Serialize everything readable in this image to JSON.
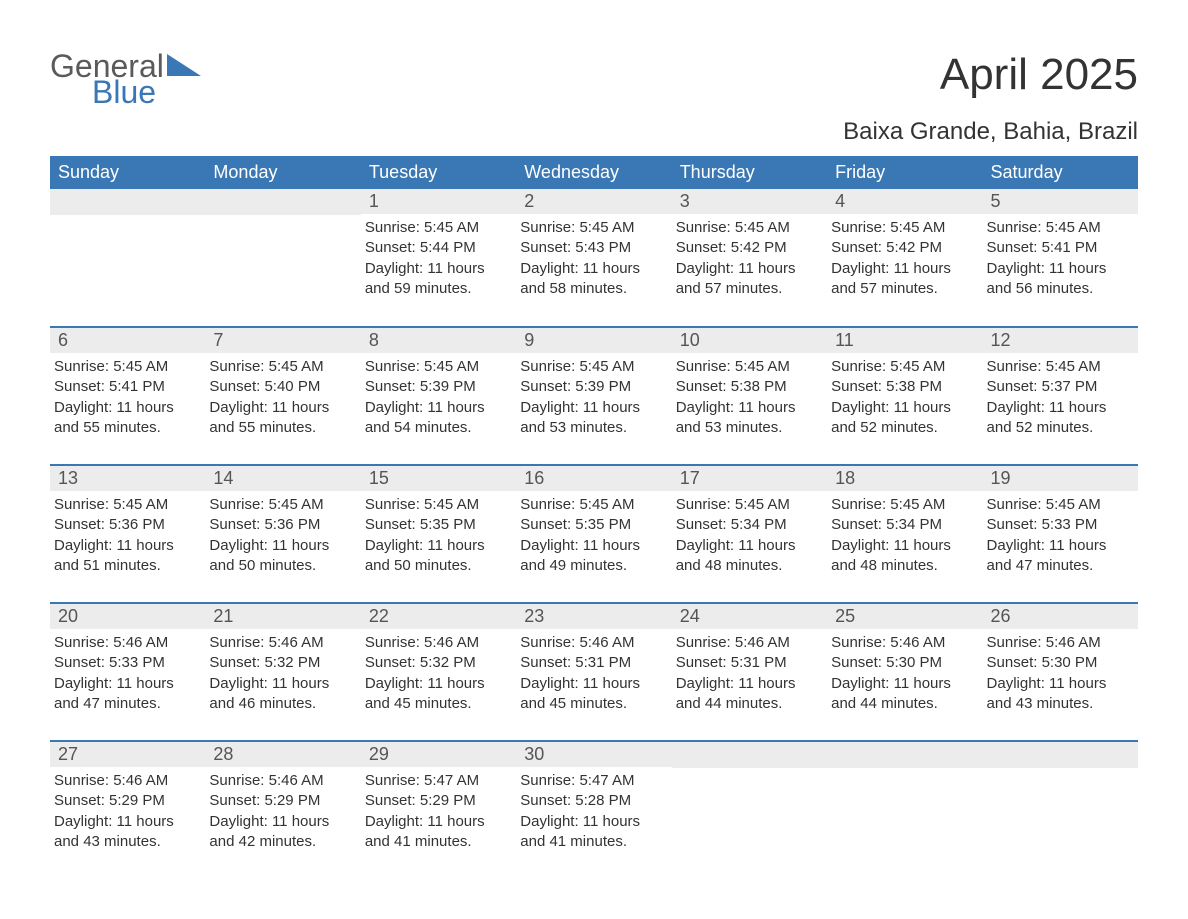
{
  "logo": {
    "line1": "General",
    "line2": "Blue",
    "color_text": "#5a5a5a",
    "color_blue": "#3a78b5"
  },
  "title": "April 2025",
  "subtitle": "Baixa Grande, Bahia, Brazil",
  "colors": {
    "header_bg": "#3a78b5",
    "header_text": "#ffffff",
    "daynum_bg": "#ececec",
    "daynum_text": "#555555",
    "body_text": "#333333",
    "row_divider": "#3a78b5",
    "background": "#ffffff"
  },
  "fontsizes": {
    "title": 44,
    "subtitle": 24,
    "weekday": 18,
    "daynum": 18,
    "body": 15
  },
  "weekdays": [
    "Sunday",
    "Monday",
    "Tuesday",
    "Wednesday",
    "Thursday",
    "Friday",
    "Saturday"
  ],
  "weeks": [
    [
      {
        "blank": true
      },
      {
        "blank": true
      },
      {
        "day": "1",
        "sunrise": "Sunrise: 5:45 AM",
        "sunset": "Sunset: 5:44 PM",
        "dl1": "Daylight: 11 hours",
        "dl2": "and 59 minutes."
      },
      {
        "day": "2",
        "sunrise": "Sunrise: 5:45 AM",
        "sunset": "Sunset: 5:43 PM",
        "dl1": "Daylight: 11 hours",
        "dl2": "and 58 minutes."
      },
      {
        "day": "3",
        "sunrise": "Sunrise: 5:45 AM",
        "sunset": "Sunset: 5:42 PM",
        "dl1": "Daylight: 11 hours",
        "dl2": "and 57 minutes."
      },
      {
        "day": "4",
        "sunrise": "Sunrise: 5:45 AM",
        "sunset": "Sunset: 5:42 PM",
        "dl1": "Daylight: 11 hours",
        "dl2": "and 57 minutes."
      },
      {
        "day": "5",
        "sunrise": "Sunrise: 5:45 AM",
        "sunset": "Sunset: 5:41 PM",
        "dl1": "Daylight: 11 hours",
        "dl2": "and 56 minutes."
      }
    ],
    [
      {
        "day": "6",
        "sunrise": "Sunrise: 5:45 AM",
        "sunset": "Sunset: 5:41 PM",
        "dl1": "Daylight: 11 hours",
        "dl2": "and 55 minutes."
      },
      {
        "day": "7",
        "sunrise": "Sunrise: 5:45 AM",
        "sunset": "Sunset: 5:40 PM",
        "dl1": "Daylight: 11 hours",
        "dl2": "and 55 minutes."
      },
      {
        "day": "8",
        "sunrise": "Sunrise: 5:45 AM",
        "sunset": "Sunset: 5:39 PM",
        "dl1": "Daylight: 11 hours",
        "dl2": "and 54 minutes."
      },
      {
        "day": "9",
        "sunrise": "Sunrise: 5:45 AM",
        "sunset": "Sunset: 5:39 PM",
        "dl1": "Daylight: 11 hours",
        "dl2": "and 53 minutes."
      },
      {
        "day": "10",
        "sunrise": "Sunrise: 5:45 AM",
        "sunset": "Sunset: 5:38 PM",
        "dl1": "Daylight: 11 hours",
        "dl2": "and 53 minutes."
      },
      {
        "day": "11",
        "sunrise": "Sunrise: 5:45 AM",
        "sunset": "Sunset: 5:38 PM",
        "dl1": "Daylight: 11 hours",
        "dl2": "and 52 minutes."
      },
      {
        "day": "12",
        "sunrise": "Sunrise: 5:45 AM",
        "sunset": "Sunset: 5:37 PM",
        "dl1": "Daylight: 11 hours",
        "dl2": "and 52 minutes."
      }
    ],
    [
      {
        "day": "13",
        "sunrise": "Sunrise: 5:45 AM",
        "sunset": "Sunset: 5:36 PM",
        "dl1": "Daylight: 11 hours",
        "dl2": "and 51 minutes."
      },
      {
        "day": "14",
        "sunrise": "Sunrise: 5:45 AM",
        "sunset": "Sunset: 5:36 PM",
        "dl1": "Daylight: 11 hours",
        "dl2": "and 50 minutes."
      },
      {
        "day": "15",
        "sunrise": "Sunrise: 5:45 AM",
        "sunset": "Sunset: 5:35 PM",
        "dl1": "Daylight: 11 hours",
        "dl2": "and 50 minutes."
      },
      {
        "day": "16",
        "sunrise": "Sunrise: 5:45 AM",
        "sunset": "Sunset: 5:35 PM",
        "dl1": "Daylight: 11 hours",
        "dl2": "and 49 minutes."
      },
      {
        "day": "17",
        "sunrise": "Sunrise: 5:45 AM",
        "sunset": "Sunset: 5:34 PM",
        "dl1": "Daylight: 11 hours",
        "dl2": "and 48 minutes."
      },
      {
        "day": "18",
        "sunrise": "Sunrise: 5:45 AM",
        "sunset": "Sunset: 5:34 PM",
        "dl1": "Daylight: 11 hours",
        "dl2": "and 48 minutes."
      },
      {
        "day": "19",
        "sunrise": "Sunrise: 5:45 AM",
        "sunset": "Sunset: 5:33 PM",
        "dl1": "Daylight: 11 hours",
        "dl2": "and 47 minutes."
      }
    ],
    [
      {
        "day": "20",
        "sunrise": "Sunrise: 5:46 AM",
        "sunset": "Sunset: 5:33 PM",
        "dl1": "Daylight: 11 hours",
        "dl2": "and 47 minutes."
      },
      {
        "day": "21",
        "sunrise": "Sunrise: 5:46 AM",
        "sunset": "Sunset: 5:32 PM",
        "dl1": "Daylight: 11 hours",
        "dl2": "and 46 minutes."
      },
      {
        "day": "22",
        "sunrise": "Sunrise: 5:46 AM",
        "sunset": "Sunset: 5:32 PM",
        "dl1": "Daylight: 11 hours",
        "dl2": "and 45 minutes."
      },
      {
        "day": "23",
        "sunrise": "Sunrise: 5:46 AM",
        "sunset": "Sunset: 5:31 PM",
        "dl1": "Daylight: 11 hours",
        "dl2": "and 45 minutes."
      },
      {
        "day": "24",
        "sunrise": "Sunrise: 5:46 AM",
        "sunset": "Sunset: 5:31 PM",
        "dl1": "Daylight: 11 hours",
        "dl2": "and 44 minutes."
      },
      {
        "day": "25",
        "sunrise": "Sunrise: 5:46 AM",
        "sunset": "Sunset: 5:30 PM",
        "dl1": "Daylight: 11 hours",
        "dl2": "and 44 minutes."
      },
      {
        "day": "26",
        "sunrise": "Sunrise: 5:46 AM",
        "sunset": "Sunset: 5:30 PM",
        "dl1": "Daylight: 11 hours",
        "dl2": "and 43 minutes."
      }
    ],
    [
      {
        "day": "27",
        "sunrise": "Sunrise: 5:46 AM",
        "sunset": "Sunset: 5:29 PM",
        "dl1": "Daylight: 11 hours",
        "dl2": "and 43 minutes."
      },
      {
        "day": "28",
        "sunrise": "Sunrise: 5:46 AM",
        "sunset": "Sunset: 5:29 PM",
        "dl1": "Daylight: 11 hours",
        "dl2": "and 42 minutes."
      },
      {
        "day": "29",
        "sunrise": "Sunrise: 5:47 AM",
        "sunset": "Sunset: 5:29 PM",
        "dl1": "Daylight: 11 hours",
        "dl2": "and 41 minutes."
      },
      {
        "day": "30",
        "sunrise": "Sunrise: 5:47 AM",
        "sunset": "Sunset: 5:28 PM",
        "dl1": "Daylight: 11 hours",
        "dl2": "and 41 minutes."
      },
      {
        "blank": true
      },
      {
        "blank": true
      },
      {
        "blank": true
      }
    ]
  ]
}
